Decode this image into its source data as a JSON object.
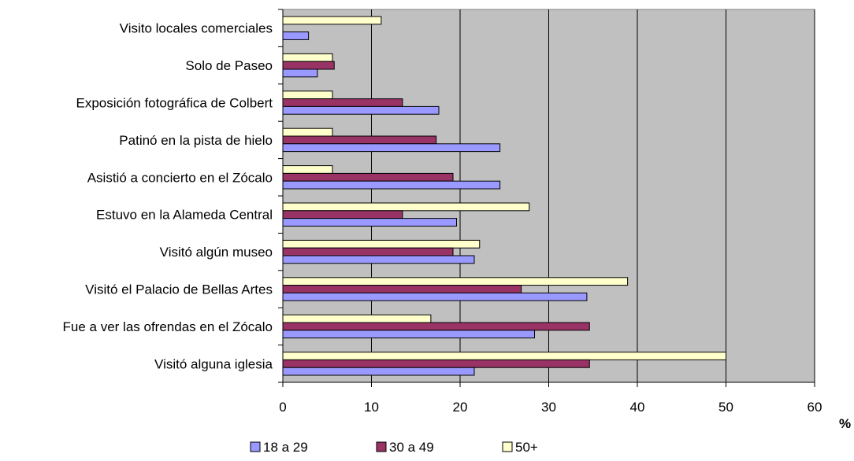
{
  "chart_data": {
    "type": "bar",
    "orientation": "horizontal",
    "categories": [
      "Visito locales comerciales",
      "Solo de Paseo",
      "Exposición fotográfica de Colbert",
      "Patinó en la pista de hielo",
      "Asistió a concierto en el Zócalo",
      "Estuvo en la  Alameda Central",
      "Visitó algún museo",
      "Visitó el Palacio de Bellas Artes",
      "Fue a ver las ofrendas en el Zócalo",
      "Visitó alguna iglesia"
    ],
    "series": [
      {
        "name": "18 a 29",
        "color": "#9999ff",
        "values": [
          2.9,
          3.9,
          17.6,
          24.5,
          24.5,
          19.6,
          21.6,
          34.3,
          28.4,
          21.6
        ]
      },
      {
        "name": "30 a 49",
        "color": "#993366",
        "values": [
          0,
          5.8,
          13.5,
          17.3,
          19.2,
          13.5,
          19.2,
          26.9,
          34.6,
          34.6
        ]
      },
      {
        "name": "50+",
        "color": "#ffffcc",
        "values": [
          11.1,
          5.6,
          5.6,
          5.6,
          5.6,
          27.8,
          22.2,
          38.9,
          16.7,
          50.0
        ]
      }
    ],
    "xlabel": "%",
    "ylabel": "",
    "xlim": [
      0,
      60
    ],
    "xticks": [
      0,
      10,
      20,
      30,
      40,
      50,
      60
    ],
    "grid": true,
    "plot_background": "#c0c0c0",
    "legend_position": "bottom"
  }
}
